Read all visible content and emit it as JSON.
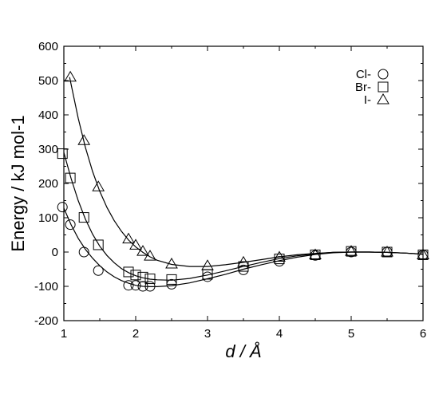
{
  "chart_data": {
    "type": "scatter",
    "xlabel": "d / Å",
    "ylabel": "Energy / kJ mol-1",
    "xlim": [
      1,
      6
    ],
    "ylim": [
      -200,
      600
    ],
    "xticks": [
      "1",
      "2",
      "3",
      "4",
      "5",
      "6"
    ],
    "yticks": [
      "-200",
      "-100",
      "0",
      "100",
      "200",
      "300",
      "400",
      "500",
      "600"
    ],
    "grid": false,
    "legend": "top-right",
    "series": [
      {
        "name": "Cl-",
        "marker": "circle",
        "points": [
          [
            0.98,
            131
          ],
          [
            1.09,
            80
          ],
          [
            1.28,
            0
          ],
          [
            1.48,
            -54
          ],
          [
            1.9,
            -97
          ],
          [
            2.0,
            -97
          ],
          [
            2.1,
            -100
          ],
          [
            2.2,
            -100
          ],
          [
            2.5,
            -94
          ],
          [
            3.0,
            -72
          ],
          [
            3.5,
            -52
          ],
          [
            4.0,
            -27
          ],
          [
            4.5,
            -10
          ],
          [
            5.0,
            0
          ],
          [
            5.5,
            0
          ],
          [
            6.0,
            -8
          ]
        ],
        "curve": [
          [
            1.0,
            128
          ],
          [
            1.1,
            80
          ],
          [
            1.2,
            40
          ],
          [
            1.3,
            8
          ],
          [
            1.4,
            -18
          ],
          [
            1.5,
            -40
          ],
          [
            1.6,
            -58
          ],
          [
            1.7,
            -72
          ],
          [
            1.8,
            -83
          ],
          [
            1.9,
            -91
          ],
          [
            2.0,
            -97
          ],
          [
            2.1,
            -100
          ],
          [
            2.2,
            -101
          ],
          [
            2.3,
            -101
          ],
          [
            2.5,
            -98
          ],
          [
            2.75,
            -90
          ],
          [
            3.0,
            -78
          ],
          [
            3.25,
            -65
          ],
          [
            3.5,
            -50
          ],
          [
            3.75,
            -37
          ],
          [
            4.0,
            -25
          ],
          [
            4.25,
            -15
          ],
          [
            4.5,
            -7
          ],
          [
            4.75,
            -2
          ],
          [
            5.0,
            0
          ],
          [
            5.25,
            0
          ],
          [
            5.5,
            -1
          ],
          [
            5.75,
            -3
          ],
          [
            6.0,
            -6
          ]
        ]
      },
      {
        "name": "Br-",
        "marker": "square",
        "points": [
          [
            0.98,
            287
          ],
          [
            1.09,
            216
          ],
          [
            1.28,
            101
          ],
          [
            1.48,
            21
          ],
          [
            1.9,
            -58
          ],
          [
            2.0,
            -67
          ],
          [
            2.1,
            -73
          ],
          [
            2.2,
            -78
          ],
          [
            2.5,
            -80
          ],
          [
            3.0,
            -65
          ],
          [
            3.5,
            -42
          ],
          [
            4.0,
            -20
          ],
          [
            4.5,
            -8
          ],
          [
            5.0,
            2
          ],
          [
            5.5,
            0
          ],
          [
            6.0,
            -8
          ]
        ],
        "curve": [
          [
            1.0,
            290
          ],
          [
            1.1,
            215
          ],
          [
            1.2,
            150
          ],
          [
            1.3,
            96
          ],
          [
            1.4,
            52
          ],
          [
            1.5,
            17
          ],
          [
            1.6,
            -10
          ],
          [
            1.7,
            -31
          ],
          [
            1.8,
            -48
          ],
          [
            1.9,
            -60
          ],
          [
            2.0,
            -69
          ],
          [
            2.1,
            -75
          ],
          [
            2.2,
            -79
          ],
          [
            2.3,
            -81
          ],
          [
            2.5,
            -82
          ],
          [
            2.75,
            -77
          ],
          [
            3.0,
            -67
          ],
          [
            3.25,
            -55
          ],
          [
            3.5,
            -42
          ],
          [
            3.75,
            -30
          ],
          [
            4.0,
            -19
          ],
          [
            4.25,
            -11
          ],
          [
            4.5,
            -5
          ],
          [
            4.75,
            -1
          ],
          [
            5.0,
            0
          ],
          [
            5.25,
            0
          ],
          [
            5.5,
            -1
          ],
          [
            5.75,
            -3
          ],
          [
            6.0,
            -6
          ]
        ]
      },
      {
        "name": "I-",
        "marker": "triangle",
        "points": [
          [
            1.09,
            510
          ],
          [
            1.28,
            325
          ],
          [
            1.48,
            190
          ],
          [
            1.9,
            38
          ],
          [
            2.0,
            20
          ],
          [
            2.1,
            2
          ],
          [
            2.2,
            -12
          ],
          [
            2.5,
            -35
          ],
          [
            3.0,
            -40
          ],
          [
            3.5,
            -30
          ],
          [
            4.0,
            -15
          ],
          [
            4.5,
            -8
          ],
          [
            5.0,
            2
          ],
          [
            5.5,
            0
          ],
          [
            6.0,
            -8
          ]
        ],
        "curve": [
          [
            1.08,
            510
          ],
          [
            1.2,
            390
          ],
          [
            1.3,
            305
          ],
          [
            1.4,
            235
          ],
          [
            1.5,
            177
          ],
          [
            1.6,
            130
          ],
          [
            1.7,
            92
          ],
          [
            1.8,
            61
          ],
          [
            1.9,
            35
          ],
          [
            2.0,
            15
          ],
          [
            2.1,
            -1
          ],
          [
            2.2,
            -14
          ],
          [
            2.3,
            -24
          ],
          [
            2.5,
            -36
          ],
          [
            2.75,
            -42
          ],
          [
            3.0,
            -42
          ],
          [
            3.25,
            -37
          ],
          [
            3.5,
            -30
          ],
          [
            3.75,
            -22
          ],
          [
            4.0,
            -14
          ],
          [
            4.25,
            -8
          ],
          [
            4.5,
            -4
          ],
          [
            4.75,
            -1
          ],
          [
            5.0,
            0
          ],
          [
            5.25,
            0
          ],
          [
            5.5,
            -1
          ],
          [
            5.75,
            -3
          ],
          [
            6.0,
            -6
          ]
        ]
      }
    ]
  }
}
